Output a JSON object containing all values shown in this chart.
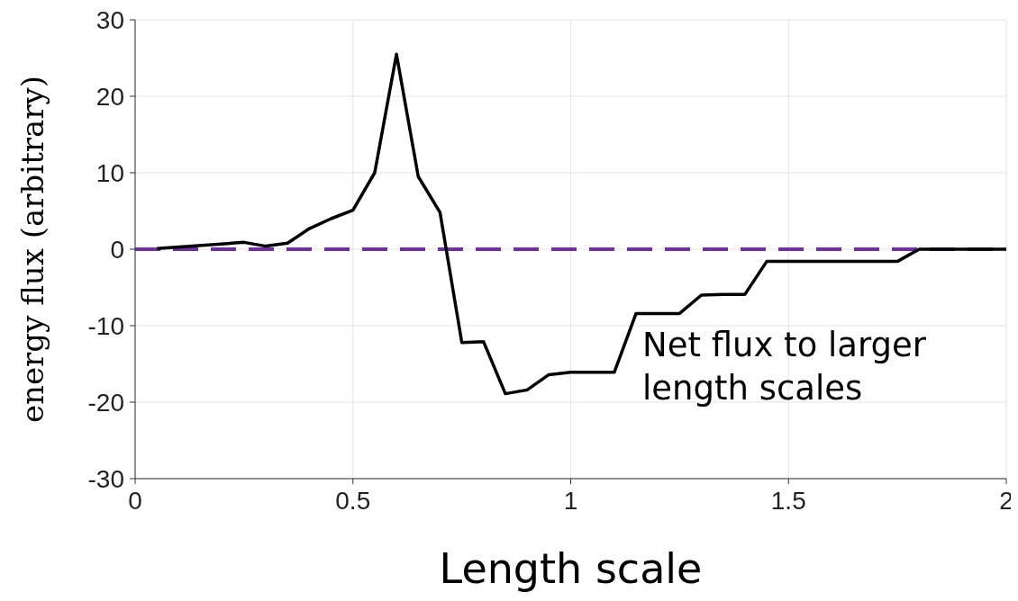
{
  "chart_data": {
    "type": "line",
    "xlabel": "Length scale",
    "ylabel": "energy flux (arbitrary)",
    "x": [
      0.05,
      0.25,
      0.3,
      0.35,
      0.4,
      0.45,
      0.5,
      0.55,
      0.6,
      0.65,
      0.7,
      0.75,
      0.8,
      0.85,
      0.9,
      0.95,
      1.0,
      1.05,
      1.1,
      1.15,
      1.2,
      1.25,
      1.3,
      1.35,
      1.4,
      1.45,
      1.5,
      1.55,
      1.6,
      1.65,
      1.7,
      1.75,
      1.8,
      1.85,
      1.9,
      1.95,
      2.0
    ],
    "series": [
      {
        "color": "#000000",
        "values": [
          0.1,
          0.9,
          0.4,
          0.8,
          2.7,
          4.0,
          5.1,
          10,
          25.5,
          9.5,
          4.8,
          -12.2,
          -12.1,
          -18.9,
          -18.4,
          -16.4,
          -16.1,
          -16.1,
          -16.1,
          -8.4,
          -8.4,
          -8.4,
          -6.0,
          -5.9,
          -5.9,
          -1.6,
          -1.6,
          -1.6,
          -1.6,
          -1.6,
          -1.6,
          -1.6,
          0,
          0,
          0,
          0,
          0
        ]
      }
    ],
    "xlim": [
      0,
      2
    ],
    "xticks": [
      0,
      0.5,
      1,
      1.5,
      2
    ],
    "ylim": [
      -30,
      30
    ],
    "yticks": [
      -30,
      -20,
      -10,
      0,
      10,
      20,
      30
    ],
    "grid": true,
    "legend": false,
    "marker": "none",
    "line_style": "solid",
    "ref_lines": [
      {
        "axis": "y",
        "value": 0,
        "color": "#7030a0",
        "line_style": "dashed"
      }
    ],
    "annotations": [
      "Net flux to larger length scales"
    ]
  }
}
